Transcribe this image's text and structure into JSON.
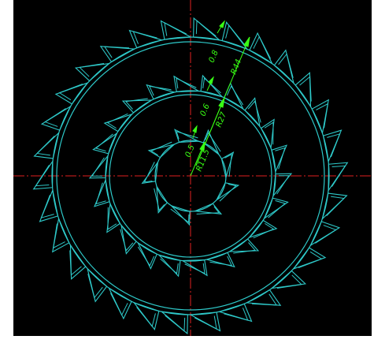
{
  "colors": {
    "background": "#000000",
    "gear_lines": "#2ec9c9",
    "dimension": "#39ff14",
    "centerline": "#e02020",
    "page": "#ffffff"
  },
  "dimensions": {
    "outer_tooth_height": "0.8",
    "outer_radius": "R44",
    "middle_tooth_height": "0.6",
    "middle_radius": "R27",
    "inner_tooth_height": "0.5",
    "inner_radius": "R11.5"
  }
}
